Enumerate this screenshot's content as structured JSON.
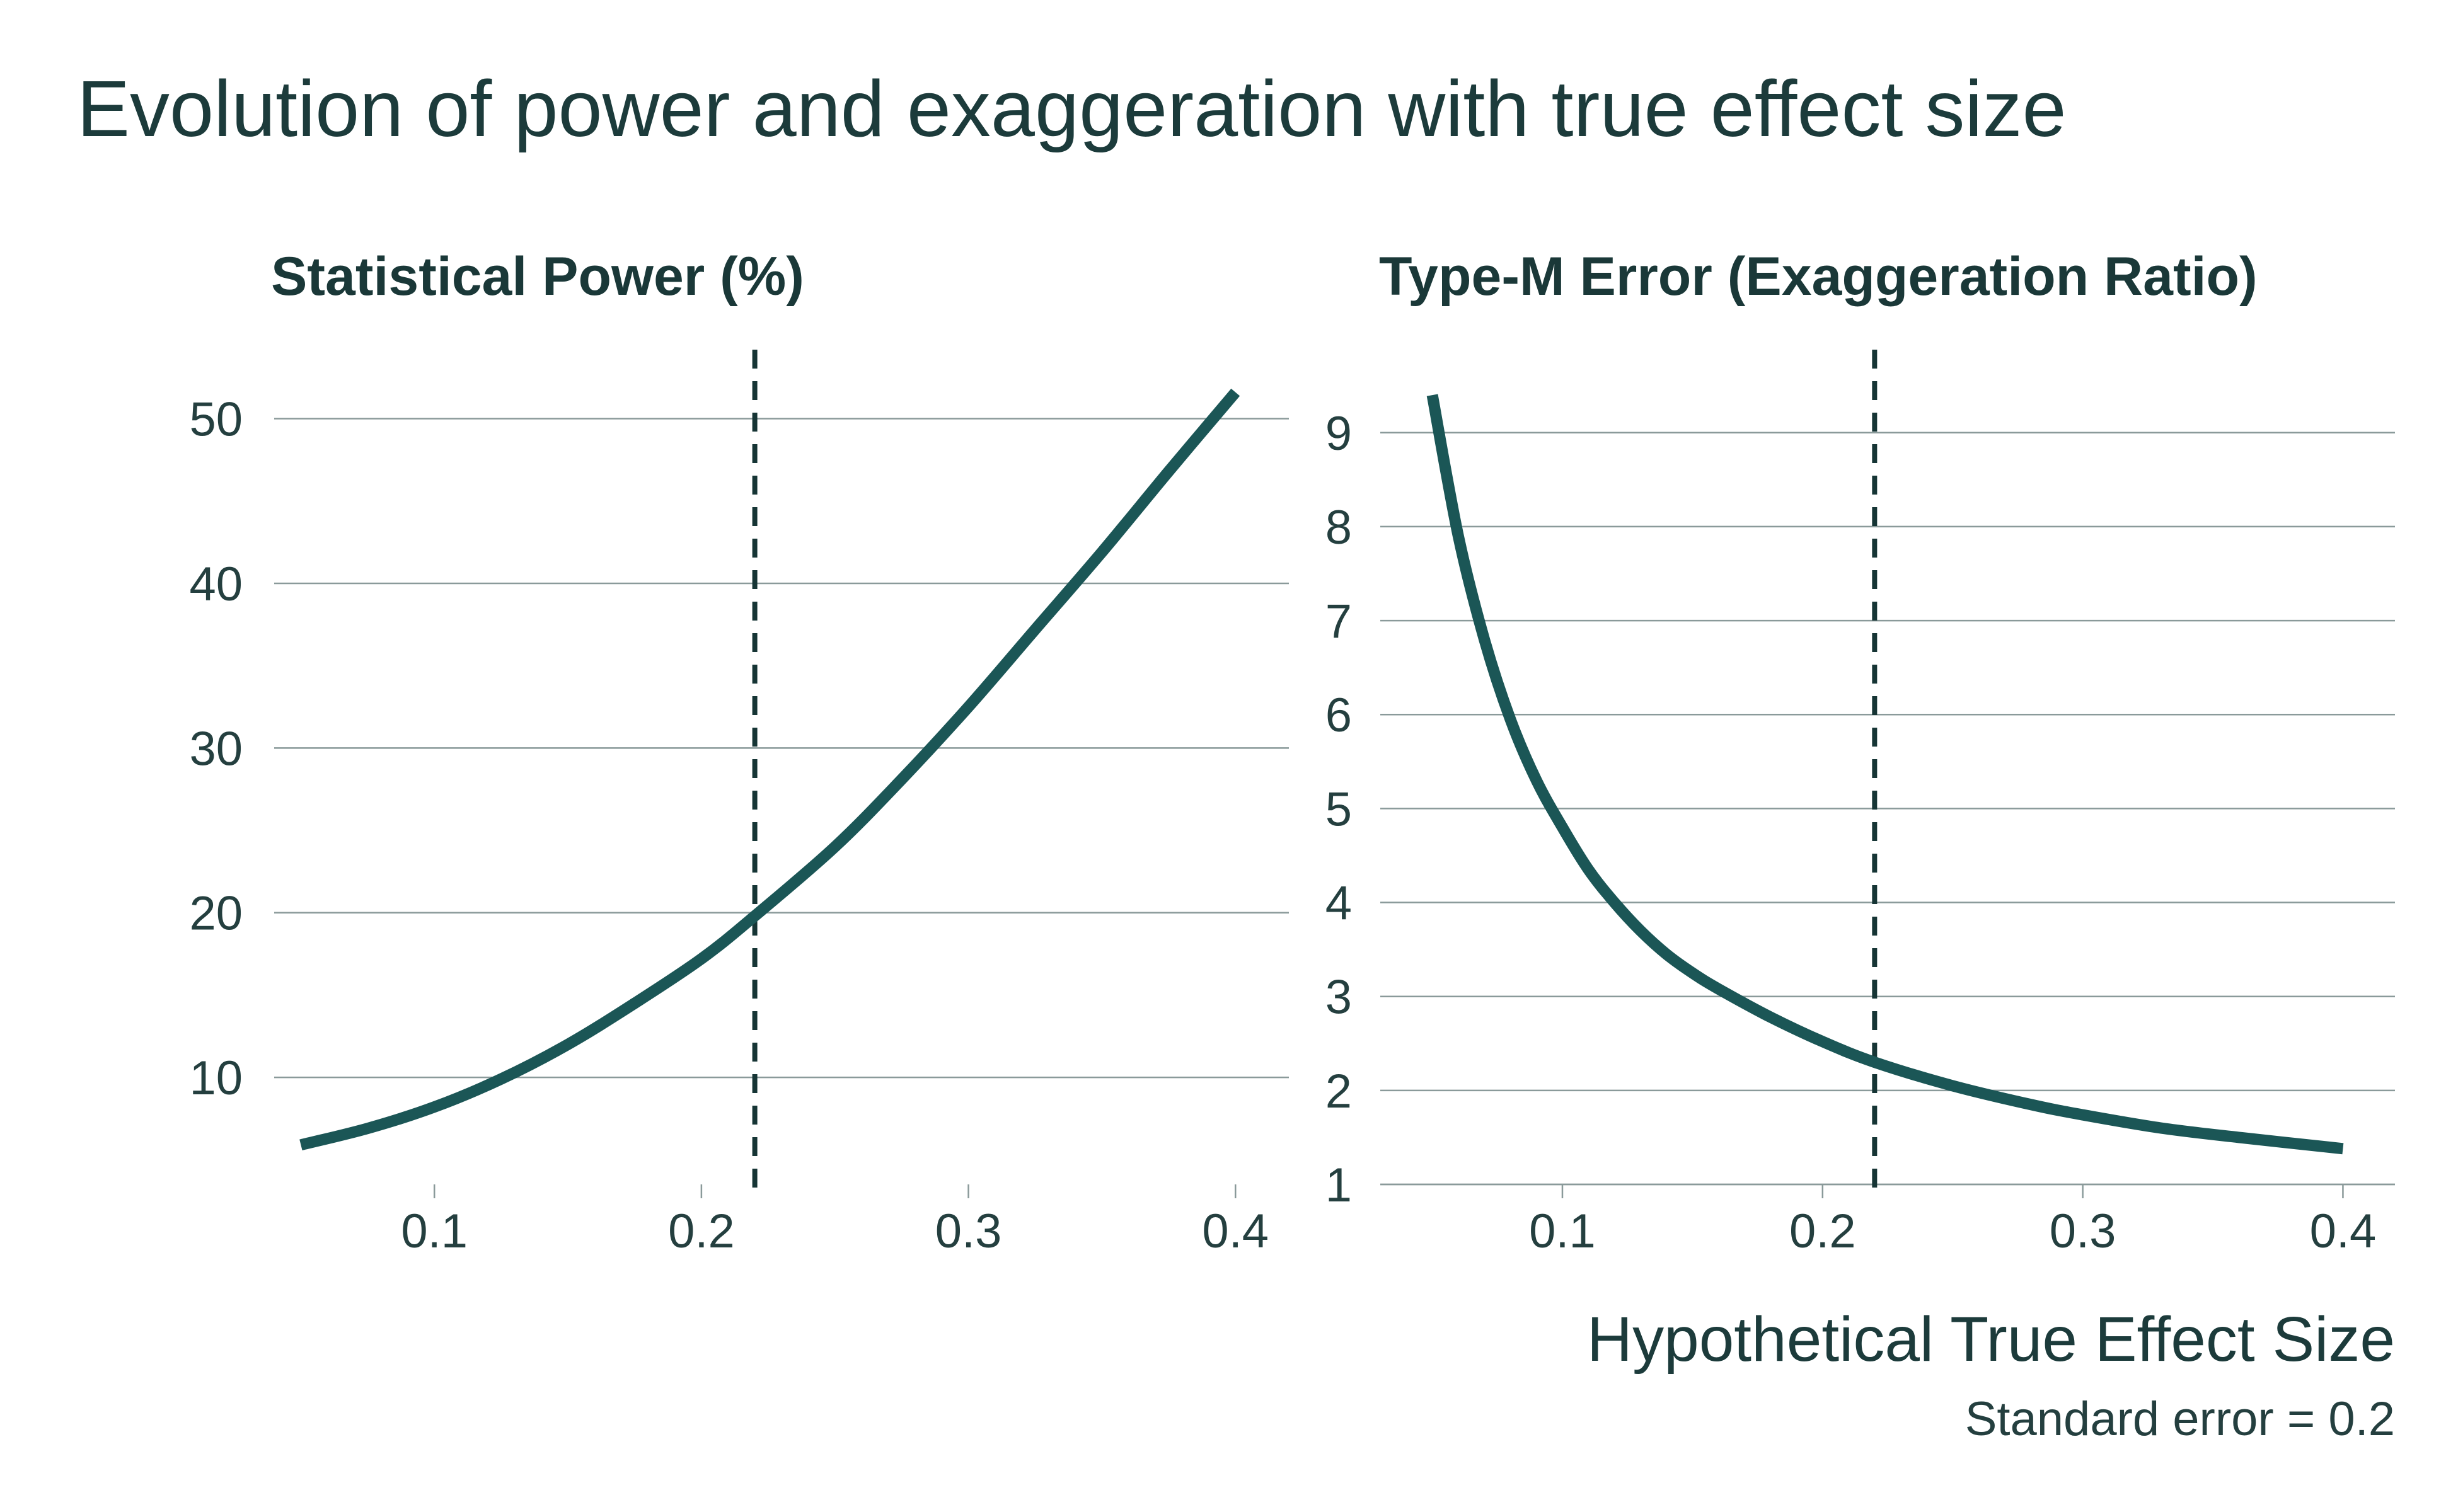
{
  "figure": {
    "title": "Evolution of power and exaggeration with true effect size",
    "xlabel": "Hypothetical True Effect Size",
    "caption": "Standard error = 0.2",
    "line_color": "#1b5656",
    "reference_line_color": "#163535"
  },
  "chart_data": [
    {
      "type": "line",
      "title": "Statistical Power (%)",
      "xlabel": "",
      "ylabel": "",
      "xlim": [
        0.04,
        0.42
      ],
      "ylim": [
        3.5,
        54
      ],
      "xticks": [
        0.1,
        0.2,
        0.3,
        0.4
      ],
      "xtick_labels": [
        "0.1",
        "0.2",
        "0.3",
        "0.4"
      ],
      "yticks": [
        10,
        20,
        30,
        40,
        50
      ],
      "ytick_labels": [
        "10",
        "20",
        "30",
        "40",
        "50"
      ],
      "grid": "horizontal",
      "reference_line": {
        "axis": "x",
        "value": 0.22,
        "style": "dashed"
      },
      "series": [
        {
          "x": [
            0.05,
            0.075,
            0.1,
            0.125,
            0.15,
            0.175,
            0.2,
            0.22,
            0.25,
            0.275,
            0.3,
            0.325,
            0.35,
            0.375,
            0.4
          ],
          "y": [
            5.9,
            6.9,
            8.2,
            9.9,
            12.0,
            14.5,
            17.2,
            19.8,
            24.0,
            28.1,
            32.5,
            37.2,
            41.9,
            46.8,
            51.6
          ]
        }
      ]
    },
    {
      "type": "line",
      "title": "Type-M Error (Exaggeration Ratio)",
      "xlabel": "",
      "ylabel": "",
      "xlim": [
        0.03,
        0.42
      ],
      "ylim": [
        1,
        9.85
      ],
      "xticks": [
        0.1,
        0.2,
        0.3,
        0.4
      ],
      "xtick_labels": [
        "0.1",
        "0.2",
        "0.3",
        "0.4"
      ],
      "yticks": [
        1,
        2,
        3,
        4,
        5,
        6,
        7,
        8,
        9
      ],
      "ytick_labels": [
        "1",
        "2",
        "3",
        "4",
        "5",
        "6",
        "7",
        "8",
        "9"
      ],
      "grid": "horizontal",
      "reference_line": {
        "axis": "x",
        "value": 0.22,
        "style": "dashed"
      },
      "series": [
        {
          "x": [
            0.05,
            0.06,
            0.07,
            0.08,
            0.09,
            0.1,
            0.11,
            0.12,
            0.13,
            0.14,
            0.15,
            0.16,
            0.18,
            0.2,
            0.22,
            0.25,
            0.28,
            0.3,
            0.33,
            0.36,
            0.4
          ],
          "y": [
            9.4,
            7.9,
            6.8,
            5.95,
            5.3,
            4.8,
            4.35,
            4.0,
            3.7,
            3.45,
            3.25,
            3.08,
            2.78,
            2.52,
            2.3,
            2.05,
            1.85,
            1.74,
            1.6,
            1.5,
            1.38
          ]
        }
      ]
    }
  ]
}
